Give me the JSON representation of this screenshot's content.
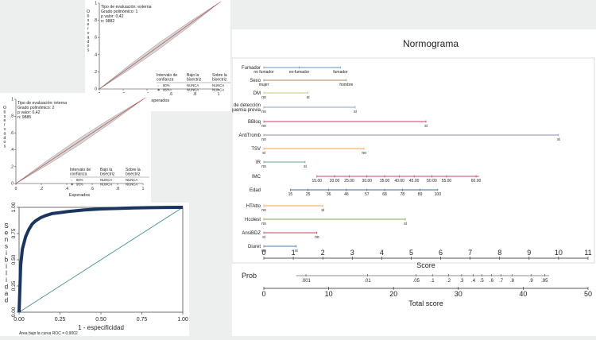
{
  "chart_data": [
    {
      "type": "line",
      "id": "calib_external",
      "stats_lines": [
        "Tipo de evaluación: externa",
        "Grado polinómico: 1",
        "p valor: 0,42",
        "n: 9882"
      ],
      "ylabel": "Observados",
      "xlabel": "Esperados",
      "x_ticks": [
        "0",
        ".2",
        ".4",
        ".6",
        ".8",
        "1"
      ],
      "y_ticks": [
        "0",
        ".2",
        ".4",
        ".6",
        ".8",
        "1"
      ],
      "xlim": [
        0,
        1
      ],
      "ylim": [
        0,
        1
      ],
      "series": [
        {
          "name": "calibración",
          "x": [
            0,
            0.25,
            0.5,
            0.75,
            1
          ],
          "y": [
            0,
            0.25,
            0.5,
            0.75,
            1
          ]
        }
      ],
      "table": {
        "headers": [
          "Intervalo de confianza",
          "Bajo la bisectriz",
          "Sobre la bisectriz"
        ],
        "rows": [
          [
            "80%",
            "NUNCA",
            "NUNCA"
          ],
          [
            "95%",
            "NUNCA",
            "NUNCA"
          ]
        ]
      },
      "annotations": []
    },
    {
      "type": "line",
      "id": "calib_internal",
      "stats_lines": [
        "Tipo de evaluación: interna",
        "Grado polinómico: 2",
        "p valor: 0,42",
        "n: 9885"
      ],
      "ylabel": "Observados",
      "xlabel": "Esperados",
      "x_ticks": [
        "0",
        ".2",
        ".4",
        ".6",
        ".8",
        "1"
      ],
      "y_ticks": [
        "0",
        ".2",
        ".4",
        ".6",
        ".8",
        "1"
      ],
      "xlim": [
        0,
        1
      ],
      "ylim": [
        0,
        1
      ],
      "series": [
        {
          "name": "calibración",
          "x": [
            0,
            0.25,
            0.5,
            0.75,
            1
          ],
          "y": [
            0,
            0.25,
            0.5,
            0.75,
            1
          ]
        }
      ],
      "table": {
        "headers": [
          "Intervalo de confianza",
          "Bajo la bisectriz",
          "Sobre la bisectriz"
        ],
        "rows": [
          [
            "80%",
            "NUNCA",
            "NUNCA"
          ],
          [
            "95%",
            "NUNCA",
            "NUNCA"
          ]
        ]
      },
      "annotations": []
    },
    {
      "type": "line",
      "id": "roc",
      "ylabel": "Sensibilidad",
      "xlabel": "1 - especificidad",
      "note": "Área bajo la curva ROC = 0,9002",
      "x_ticks": [
        "0.00",
        "0.25",
        "0.50",
        "0.75",
        "1.00"
      ],
      "y_ticks": [
        "0.00",
        "0.25",
        "0.50",
        "0.75",
        "1.00"
      ],
      "xlim": [
        0,
        1
      ],
      "ylim": [
        0,
        1
      ],
      "series": [
        {
          "name": "ROC",
          "x": [
            0,
            0.01,
            0.02,
            0.04,
            0.06,
            0.08,
            0.1,
            0.13,
            0.16,
            0.2,
            0.25,
            0.3,
            0.4,
            0.5,
            0.6,
            0.7,
            0.8,
            0.9,
            1.0
          ],
          "y": [
            0,
            0.45,
            0.6,
            0.72,
            0.79,
            0.84,
            0.87,
            0.9,
            0.92,
            0.94,
            0.95,
            0.96,
            0.975,
            0.985,
            0.99,
            0.994,
            0.997,
            0.999,
            1.0
          ]
        },
        {
          "name": "referencia",
          "x": [
            0,
            1
          ],
          "y": [
            0,
            1
          ]
        }
      ]
    },
    {
      "type": "nomogram",
      "id": "nomogram",
      "title": "Normograma",
      "score_label": "Score",
      "total_label": "Total score",
      "prob_label": "Prob",
      "score_range": [
        0,
        11
      ],
      "score_ticks": [
        0,
        1,
        2,
        3,
        4,
        5,
        6,
        7,
        8,
        9,
        10,
        11
      ],
      "total_range": [
        0,
        50
      ],
      "total_ticks": [
        0,
        10,
        20,
        30,
        40,
        50
      ],
      "prob_ticks": [
        {
          "label": ".001",
          "total": 6.5
        },
        {
          "label": ".01",
          "total": 16
        },
        {
          "label": ".05",
          "total": 23.5
        },
        {
          "label": ".1",
          "total": 26
        },
        {
          "label": ".2",
          "total": 28.5
        },
        {
          "label": ".3",
          "total": 30.5
        },
        {
          "label": ".4",
          "total": 32.3
        },
        {
          "label": ".5",
          "total": 33.6
        },
        {
          "label": ".6",
          "total": 35.1
        },
        {
          "label": ".7",
          "total": 36.6
        },
        {
          "label": ".8",
          "total": 38.3
        },
        {
          "label": ".9",
          "total": 41.2
        },
        {
          "label": ".95",
          "total": 43.3
        }
      ],
      "variables": [
        {
          "name": "Fumador",
          "color": "#6b8fc4",
          "start": 0,
          "end": 2.6,
          "labels": [
            {
              "text": "no fumador",
              "score": 0
            },
            {
              "text": "ex-fumador",
              "score": 1.2
            },
            {
              "text": "fumador",
              "score": 2.6
            }
          ]
        },
        {
          "name": "Sexo",
          "color": "#b5855a",
          "start": 0,
          "end": 2.8,
          "labels": [
            {
              "text": "mujer",
              "score": 0
            },
            {
              "text": "hombre",
              "score": 2.8
            }
          ]
        },
        {
          "name": "DM",
          "color": "#c9c97a",
          "start": 0,
          "end": 1.5,
          "labels": [
            {
              "text": "no",
              "score": 0
            },
            {
              "text": "si",
              "score": 1.5
            }
          ]
        },
        {
          "name": "Prueba de detección\nde isquemia previa",
          "color": "#8a9bd6",
          "start": 0,
          "end": 3.1,
          "labels": [
            {
              "text": "no",
              "score": 0
            },
            {
              "text": "si",
              "score": 3.1
            }
          ]
        },
        {
          "name": "BBloq",
          "color": "#d23a6a",
          "start": 0,
          "end": 5.5,
          "labels": [
            {
              "text": "no",
              "score": 0
            },
            {
              "text": "si",
              "score": 5.5
            }
          ]
        },
        {
          "name": "AntiTromb",
          "color": "#8c8fa8",
          "start": 0,
          "end": 10,
          "labels": [
            {
              "text": "no",
              "score": 0
            },
            {
              "text": "si",
              "score": 10
            }
          ]
        },
        {
          "name": "TSV",
          "color": "#f0a24a",
          "start": 0,
          "end": 3.4,
          "labels": [
            {
              "text": "si",
              "score": 0
            },
            {
              "text": "no",
              "score": 3.4
            }
          ]
        },
        {
          "name": "IR",
          "color": "#5fa58f",
          "start": 0,
          "end": 1.4,
          "labels": [
            {
              "text": "no",
              "score": 0
            },
            {
              "text": "si",
              "score": 1.4
            }
          ]
        },
        {
          "name": "IMC",
          "color": "#b84a5a",
          "start": 1.8,
          "end": 7.3,
          "labels": [
            {
              "text": "15.00",
              "score": 1.8
            },
            {
              "text": "20.00",
              "score": 2.4
            },
            {
              "text": "25.00",
              "score": 2.9
            },
            {
              "text": "30.00",
              "score": 3.5
            },
            {
              "text": "35.00",
              "score": 4.1
            },
            {
              "text": "40.00",
              "score": 4.6
            },
            {
              "text": "45.00",
              "score": 5.1
            },
            {
              "text": "50.00",
              "score": 5.7
            },
            {
              "text": "55.00",
              "score": 6.2
            },
            {
              "text": "60.00",
              "score": 7.2
            }
          ]
        },
        {
          "name": "Edad",
          "color": "#3a6c8c",
          "start": 0.9,
          "end": 5.9,
          "labels": [
            {
              "text": "15",
              "score": 0.9
            },
            {
              "text": "25",
              "score": 1.5
            },
            {
              "text": "36",
              "score": 2.2
            },
            {
              "text": "46",
              "score": 2.8
            },
            {
              "text": "57",
              "score": 3.5
            },
            {
              "text": "68",
              "score": 4.1
            },
            {
              "text": "78",
              "score": 4.7
            },
            {
              "text": "89",
              "score": 5.3
            },
            {
              "text": "100",
              "score": 5.9
            }
          ]
        },
        {
          "name": "HTAtto",
          "color": "#f0a24a",
          "start": 0,
          "end": 2,
          "labels": [
            {
              "text": "no",
              "score": 0
            },
            {
              "text": "si",
              "score": 2
            }
          ]
        },
        {
          "name": "Hcolest",
          "color": "#7fa84a",
          "start": 0,
          "end": 4.8,
          "labels": [
            {
              "text": "no",
              "score": 0
            },
            {
              "text": "si",
              "score": 4.8
            }
          ]
        },
        {
          "name": "AnsiBDZ",
          "color": "#b84a5a",
          "start": 0,
          "end": 1.8,
          "labels": [
            {
              "text": "si",
              "score": 0
            },
            {
              "text": "no",
              "score": 1.8
            }
          ]
        },
        {
          "name": "Diuret",
          "color": "#4a7ab8",
          "start": 0,
          "end": 1.1,
          "labels": [
            {
              "text": "no",
              "score": 0
            },
            {
              "text": "si",
              "score": 1.1
            }
          ]
        }
      ]
    }
  ]
}
